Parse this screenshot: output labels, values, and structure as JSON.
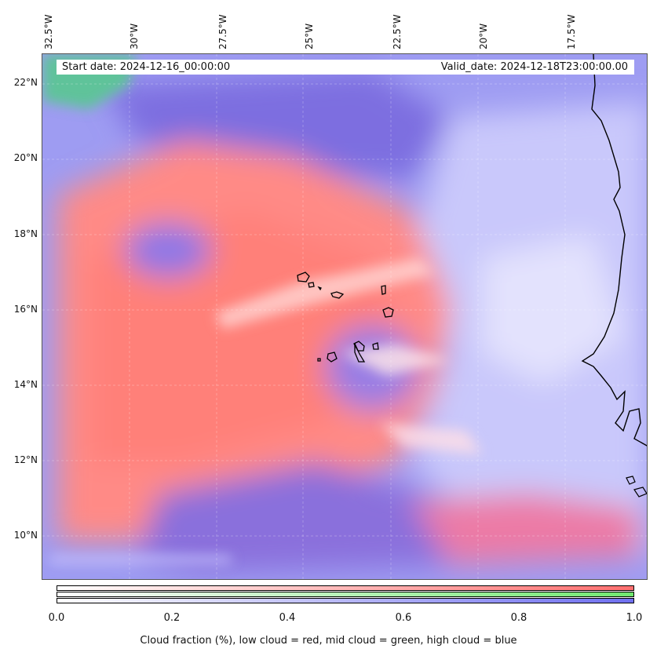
{
  "map": {
    "longitude_labels": [
      "32.5°W",
      "30°W",
      "27.5°W",
      "25°W",
      "22.5°W",
      "20°W",
      "17.5°W"
    ],
    "latitude_labels": [
      "22°N",
      "20°N",
      "18°N",
      "16°N",
      "14°N",
      "12°N",
      "10°N"
    ],
    "extent": {
      "lon_min": -32.6,
      "lon_max": -15.0,
      "lat_min": 8.9,
      "lat_max": 22.8
    },
    "start_date_text": "Start date: 2024-12-16_00:00:00",
    "valid_date_text": "Valid_date: 2024-12-18T23:00:00.00",
    "layers": [
      "low cloud",
      "mid cloud",
      "high cloud"
    ],
    "layer_colors": {
      "low cloud": "#ff7a7a",
      "mid cloud": "#7de87d",
      "high cloud": "#7a7aff"
    },
    "coastline_color": "#000000"
  },
  "colorbar": {
    "ticks": [
      "0.0",
      "0.2",
      "0.4",
      "0.6",
      "0.8",
      "1.0"
    ],
    "label": "Cloud fraction (%), low cloud = red, mid cloud = green, high cloud = blue",
    "rows": [
      "low cloud",
      "mid cloud",
      "high cloud"
    ]
  }
}
